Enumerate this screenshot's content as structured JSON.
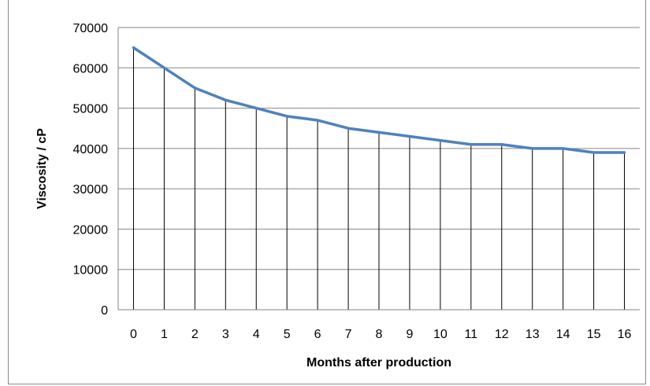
{
  "chart_data": {
    "type": "line",
    "title": "",
    "xlabel": "Months after production",
    "ylabel": "Viscosity / cP",
    "x": [
      "0",
      "1",
      "2",
      "3",
      "4",
      "5",
      "6",
      "7",
      "8",
      "9",
      "10",
      "11",
      "12",
      "13",
      "14",
      "15",
      "16"
    ],
    "series": [
      {
        "values": [
          65000,
          60000,
          55000,
          52000,
          50000,
          48000,
          47000,
          45000,
          44000,
          43000,
          42000,
          41000,
          41000,
          40000,
          40000,
          39000,
          39000
        ],
        "color": "#4f81bd"
      }
    ],
    "ylim": [
      0,
      70000
    ],
    "yticks": [
      "0",
      "10000",
      "20000",
      "30000",
      "40000",
      "50000",
      "60000",
      "70000"
    ],
    "grid": "horizontal major gridlines",
    "drop_lines": true,
    "legend": "none"
  }
}
